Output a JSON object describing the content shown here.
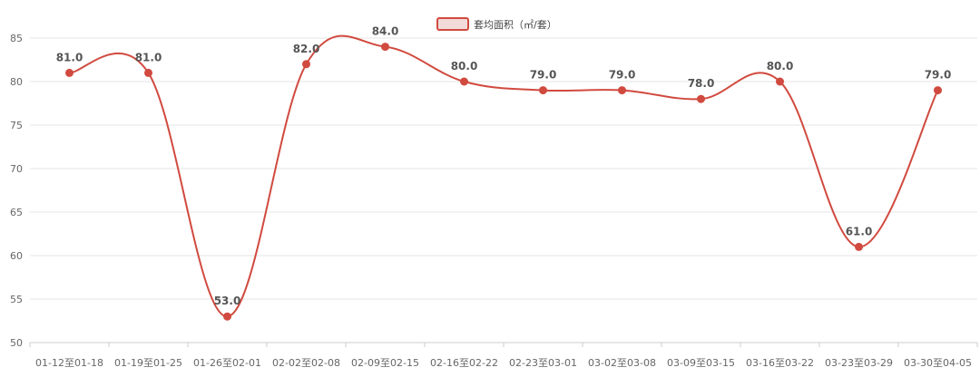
{
  "chart_data": {
    "type": "line",
    "title": "",
    "xlabel": "",
    "ylabel": "",
    "categories": [
      "01-12至01-18",
      "01-19至01-25",
      "01-26至02-01",
      "02-02至02-08",
      "02-09至02-15",
      "02-16至02-22",
      "02-23至03-01",
      "03-02至03-08",
      "03-09至03-15",
      "03-16至03-22",
      "03-23至03-29",
      "03-30至04-05"
    ],
    "series": [
      {
        "name": "套均面积（㎡/套）",
        "values": [
          81.0,
          81.0,
          53.0,
          82.0,
          84.0,
          80.0,
          79.0,
          79.0,
          78.0,
          80.0,
          61.0,
          79.0
        ],
        "labels": [
          "81.0",
          "81.0",
          "53.0",
          "82.0",
          "84.0",
          "80.0",
          "79.0",
          "79.0",
          "78.0",
          "80.0",
          "61.0",
          "79.0"
        ]
      }
    ],
    "ylim": [
      50,
      85
    ],
    "yticks": [
      50,
      55,
      60,
      65,
      70,
      75,
      80,
      85
    ],
    "ytick_labels": [
      "50",
      "55",
      "60",
      "65",
      "70",
      "75",
      "80",
      "85"
    ],
    "smooth": true,
    "grid": true,
    "legend_position": "top-center",
    "colors": {
      "series": "#d14a3f",
      "grid": "#e6e6e6",
      "axis": "#cccccc",
      "legend_fill": "#f2dcda"
    }
  }
}
